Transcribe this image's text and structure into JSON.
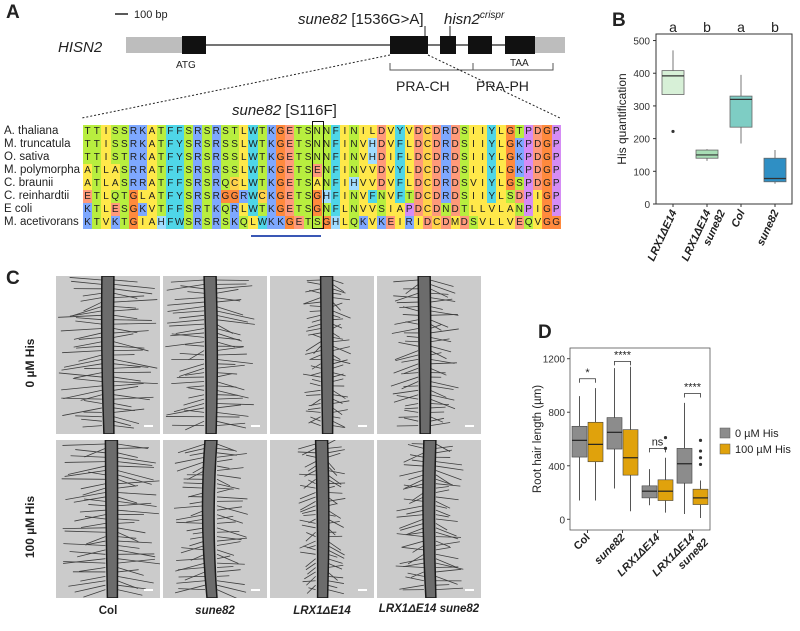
{
  "panels": {
    "a": "A",
    "b": "B",
    "c": "C",
    "d": "D"
  },
  "gene": {
    "name": "HISN2",
    "scale_bar": "100 bp",
    "atg": "ATG",
    "taa": "TAA",
    "mut1_pre": "sune82",
    "mut1_post": " [1536G>A]",
    "mut2_pre": "hisn2",
    "mut2_sup": "crispr",
    "domain1": "PRA-CH",
    "domain2": "PRA-PH",
    "s116f_pre": "sune82",
    "s116f_post": " [S116F]"
  },
  "alignment": {
    "species": [
      "A. thaliana",
      "M. truncatula",
      "O. sativa",
      "M. polymorpha",
      "C. braunii",
      "C. reinhardtii",
      "E coli",
      "M. acetivorans"
    ],
    "sequences": [
      "TTISSRKATFFSRSRSTLWTKGETSNNFINILDVYVDCDRDSIIYLGTPDGP",
      "TTISSRKATFYSRSRSSLWTKGETSNNFINVHDVFLDCDRDSIIYLGKPDGP",
      "TTISTRKATFYSRSRSSLWTKGETSNNFINVHDIFLDCDRDSIIYLGKPDGP",
      "ATLASRRATFFSRSRSSLWTKGETSENFINVVDVYLDCDRDSIIYLGKPDGP",
      "ATLASRRATFFSRSRQCLWTKGETSANFIHVVDVFLDCDRDSVIYLGSPDGP",
      "ETLQTGLATFYSRSRGGRWCKGETSGHFINVFNVFTDCDRDSIIYLSDPIGP",
      "KTLESGKVTFFSRTKQRLWTKGETSGNFLNVVSIAPDCDNDTLLVLANPIGP",
      "KTVKTGIAHFWSRSRSKQLWKKGETSGHLQKVKEIRIDCDMDSVLLVEQVGG"
    ]
  },
  "chart_b": {
    "type": "box",
    "ylabel": "His quantification",
    "categories": [
      "LRX1ΔE14",
      "LRX1ΔE14 sune82",
      "Col",
      "sune82"
    ],
    "letters": [
      "a",
      "b",
      "a",
      "b"
    ],
    "yticks": [
      "0",
      "100",
      "200",
      "300",
      "400",
      "500"
    ],
    "ylim": [
      0,
      520
    ],
    "boxes": [
      {
        "min": 335,
        "q1": 335,
        "median": 392,
        "q3": 408,
        "max": 470,
        "outliers": [
          222
        ],
        "color": "#d7f0d7"
      },
      {
        "min": 132,
        "q1": 140,
        "median": 150,
        "q3": 165,
        "max": 168,
        "outliers": [],
        "color": "#a8ddb5"
      },
      {
        "min": 185,
        "q1": 235,
        "median": 320,
        "q3": 330,
        "max": 395,
        "outliers": [],
        "color": "#7ecdc4"
      },
      {
        "min": 62,
        "q1": 68,
        "median": 78,
        "q3": 140,
        "max": 165,
        "outliers": [],
        "color": "#2f8fc4"
      }
    ]
  },
  "chart_c": {
    "row_labels": [
      "0 µM His",
      "100 µM His"
    ],
    "col_labels": [
      "Col",
      "sune82",
      "LRX1ΔE14",
      "LRX1ΔE14 sune82"
    ]
  },
  "chart_d": {
    "type": "box",
    "ylabel": "Root hair length (µm)",
    "categories": [
      "Col",
      "sune82",
      "LRX1ΔE14",
      "LRX1ΔE14 sune82"
    ],
    "yticks": [
      "0",
      "400",
      "800",
      "1200"
    ],
    "ylim": [
      -80,
      1280
    ],
    "significance": [
      "*",
      "****",
      "ns",
      "****"
    ],
    "series": [
      {
        "name": "0 µM His",
        "color": "#8c8c8c",
        "boxes": [
          {
            "min": 140,
            "q1": 465,
            "median": 590,
            "q3": 695,
            "max": 920,
            "outliers": []
          },
          {
            "min": 230,
            "q1": 525,
            "median": 650,
            "q3": 760,
            "max": 1130,
            "outliers": []
          },
          {
            "min": 105,
            "q1": 160,
            "median": 210,
            "q3": 250,
            "max": 375,
            "outliers": []
          },
          {
            "min": 40,
            "q1": 270,
            "median": 415,
            "q3": 530,
            "max": 870,
            "outliers": []
          }
        ]
      },
      {
        "name": "100 µM His",
        "color": "#e0a20c",
        "boxes": [
          {
            "min": 140,
            "q1": 430,
            "median": 560,
            "q3": 725,
            "max": 980,
            "outliers": []
          },
          {
            "min": 60,
            "q1": 330,
            "median": 460,
            "q3": 670,
            "max": 1140,
            "outliers": []
          },
          {
            "min": 50,
            "q1": 140,
            "median": 210,
            "q3": 295,
            "max": 460,
            "outliers": [
              530,
              610
            ]
          },
          {
            "min": 10,
            "q1": 110,
            "median": 160,
            "q3": 225,
            "max": 290,
            "outliers": [
              410,
              460,
              510,
              590
            ]
          }
        ]
      }
    ]
  }
}
